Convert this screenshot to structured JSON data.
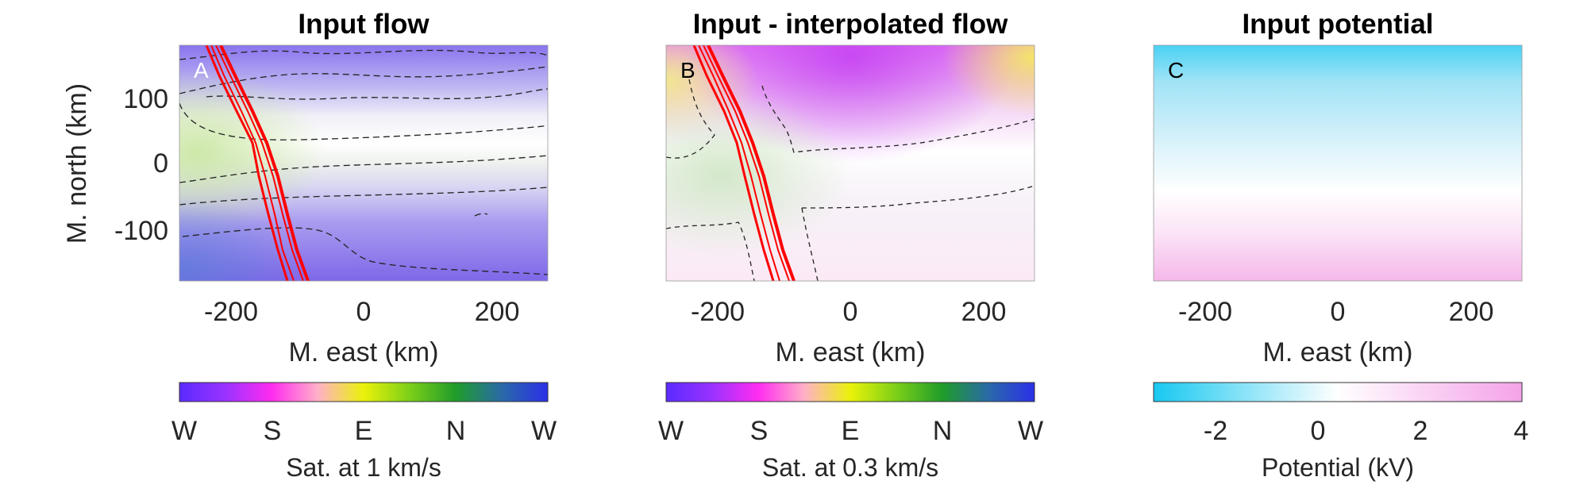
{
  "figure": {
    "panels": [
      {
        "id": "A",
        "title": "Input flow",
        "panel_label": "A",
        "xlabel": "M. east (km)",
        "ylabel": "M. north (km)",
        "xticks": [
          -200,
          0,
          200
        ],
        "yticks": [
          100,
          0,
          -100
        ],
        "colorbar": {
          "label": "Sat. at 1 km/s",
          "ticks": [
            "W",
            "S",
            "E",
            "N",
            "W"
          ],
          "colors": [
            "#5a2bff",
            "#9a32ff",
            "#ff2cf0",
            "#ffb0c8",
            "#eaf20a",
            "#7ccf18",
            "#1f9c2a",
            "#2a6aa8",
            "#2b2fe8"
          ]
        }
      },
      {
        "id": "B",
        "title": "Input - interpolated flow",
        "panel_label": "B",
        "xlabel": "M. east (km)",
        "ylabel": "",
        "xticks": [
          -200,
          0,
          200
        ],
        "yticks": [],
        "colorbar": {
          "label": "Sat. at 0.3 km/s",
          "ticks": [
            "W",
            "S",
            "E",
            "N",
            "W"
          ],
          "colors": [
            "#5a2bff",
            "#9a32ff",
            "#ff2cf0",
            "#ffb0c8",
            "#eaf20a",
            "#7ccf18",
            "#1f9c2a",
            "#2a6aa8",
            "#2b2fe8"
          ]
        }
      },
      {
        "id": "C",
        "title": "Input potential",
        "panel_label": "C",
        "xlabel": "M. east (km)",
        "ylabel": "",
        "xticks": [
          -200,
          0,
          200
        ],
        "yticks": [],
        "colorbar": {
          "label": "Potential (kV)",
          "ticks": [
            "-2",
            "0",
            "2",
            "4"
          ],
          "colors": [
            "#18c8f0",
            "#ffffff",
            "#f4a2e8"
          ]
        }
      }
    ]
  },
  "chart_data": [
    {
      "type": "heatmap",
      "title": "Input flow",
      "xlabel": "M. east (km)",
      "ylabel": "M. north (km)",
      "xlim": [
        -270,
        270
      ],
      "ylim": [
        -175,
        175
      ],
      "colorbar": {
        "label": "Sat. at 1 km/s",
        "ticks": [
          "W",
          "S",
          "E",
          "N",
          "W"
        ]
      },
      "contours": "dashed black",
      "overlay": "red satellite track from (-225, 175) to (-125, -175)"
    },
    {
      "type": "heatmap",
      "title": "Input - interpolated flow",
      "xlabel": "M. east (km)",
      "ylabel": "M. north (km)",
      "xlim": [
        -270,
        270
      ],
      "ylim": [
        -175,
        175
      ],
      "colorbar": {
        "label": "Sat. at 0.3 km/s",
        "ticks": [
          "W",
          "S",
          "E",
          "N",
          "W"
        ]
      },
      "contours": "dashed black",
      "overlay": "red satellite track from (-225, 175) to (-125, -175)"
    },
    {
      "type": "heatmap",
      "title": "Input potential",
      "xlabel": "M. east (km)",
      "ylabel": "M. north (km)",
      "xlim": [
        -270,
        270
      ],
      "ylim": [
        -175,
        175
      ],
      "colorbar": {
        "label": "Potential (kV)",
        "range": [
          -3.2,
          4
        ],
        "ticks": [
          -2,
          0,
          2,
          4
        ]
      }
    }
  ]
}
